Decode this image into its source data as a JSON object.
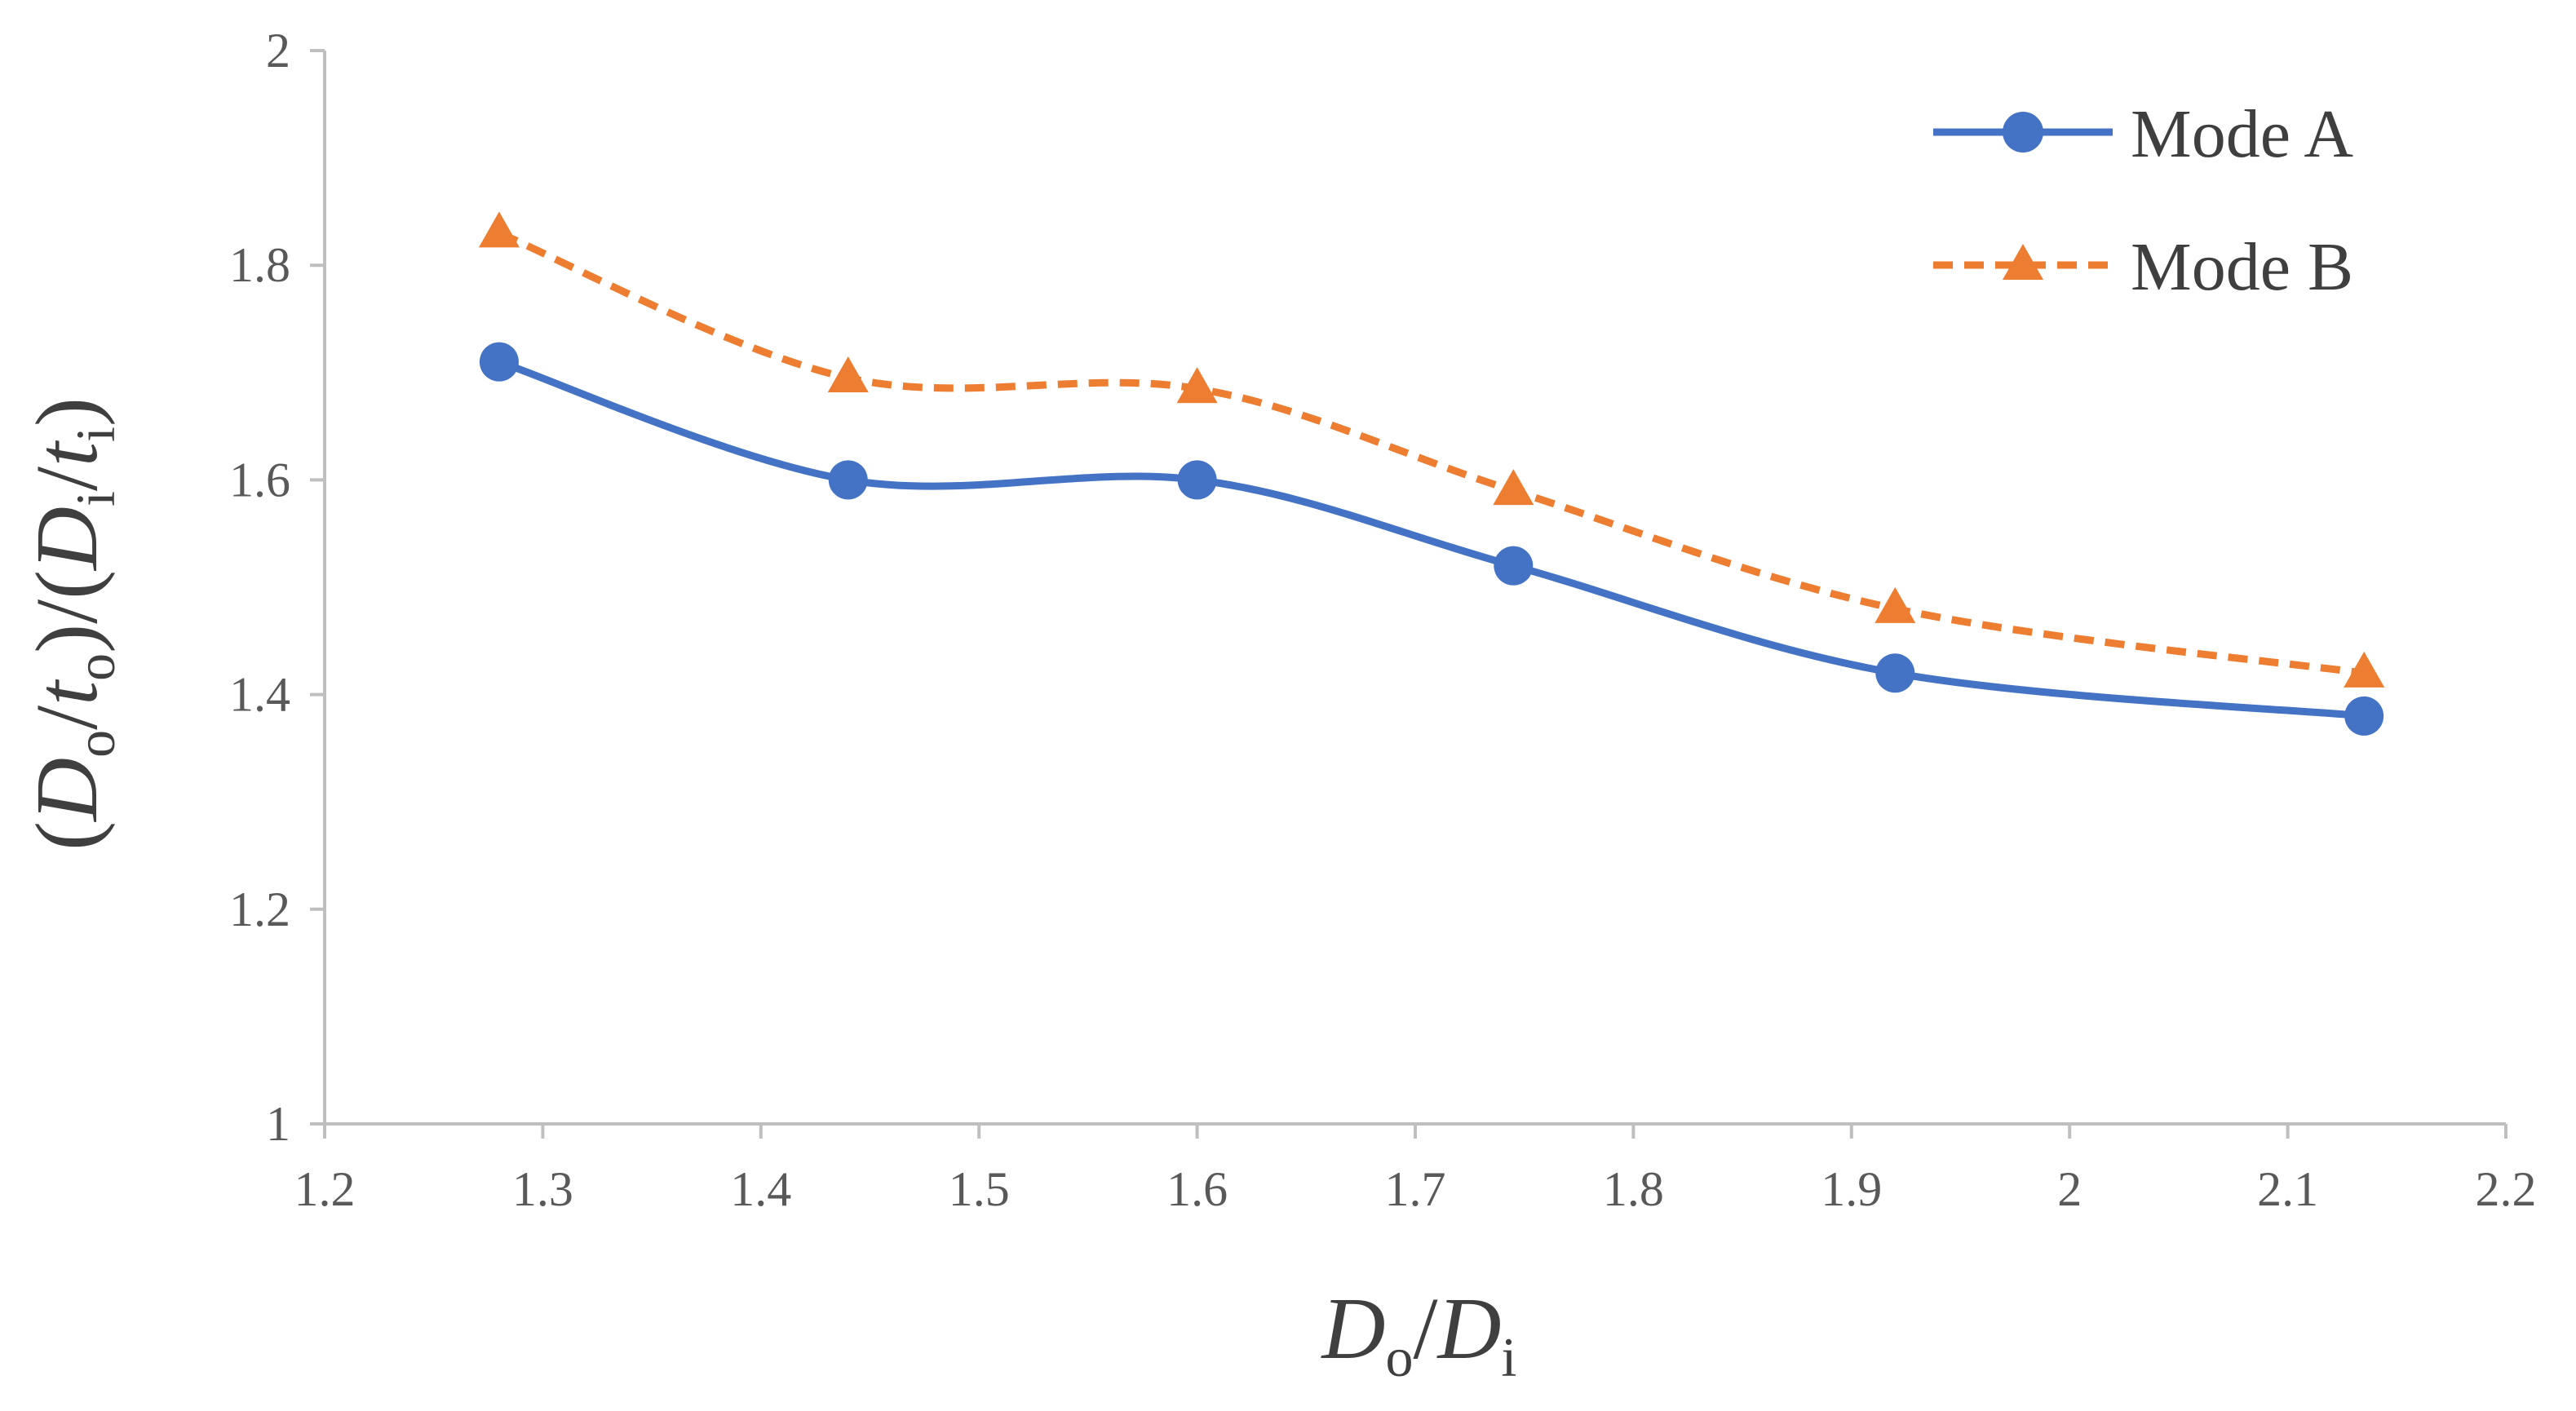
{
  "chart_data": {
    "type": "line",
    "title": "",
    "x": [
      1.28,
      1.44,
      1.6,
      1.745,
      1.92,
      2.135
    ],
    "xlim": [
      1.2,
      2.2
    ],
    "ylim": [
      1.0,
      2.0
    ],
    "xticks": [
      1.2,
      1.3,
      1.4,
      1.5,
      1.6,
      1.7,
      1.8,
      1.9,
      2.0,
      2.1,
      2.2
    ],
    "xtick_labels": [
      "1.2",
      "1.3",
      "1.4",
      "1.5",
      "1.6",
      "1.7",
      "1.8",
      "1.9",
      "2",
      "2.1",
      "2.2"
    ],
    "yticks": [
      1.0,
      1.2,
      1.4,
      1.6,
      1.8,
      2.0
    ],
    "ytick_labels": [
      "1",
      "1.2",
      "1.4",
      "1.6",
      "1.8",
      "2"
    ],
    "xlabel": {
      "main1": "D",
      "sub1": "o",
      "sep": "/",
      "main2": "D",
      "sub2": "i"
    },
    "ylabel": {
      "p1": "(",
      "d1": "D",
      "s1": "o",
      "sl1": "/",
      "t1": "t",
      "s2": "o",
      "p2": ")/(",
      "d2": "D",
      "s3": "i",
      "sl2": "/",
      "t2": "t",
      "s4": "i",
      "p3": ")"
    },
    "grid": false,
    "legend_position": "top-right",
    "series": [
      {
        "name": "Mode A",
        "values": [
          1.71,
          1.6,
          1.6,
          1.52,
          1.42,
          1.38
        ],
        "color": "#4472C4",
        "marker": "circle",
        "dash": "solid"
      },
      {
        "name": "Mode B",
        "values": [
          1.83,
          1.695,
          1.685,
          1.59,
          1.48,
          1.42
        ],
        "color": "#ED7D31",
        "marker": "triangle",
        "dash": "dashed"
      }
    ],
    "axis_color": "#bfbfbf"
  }
}
